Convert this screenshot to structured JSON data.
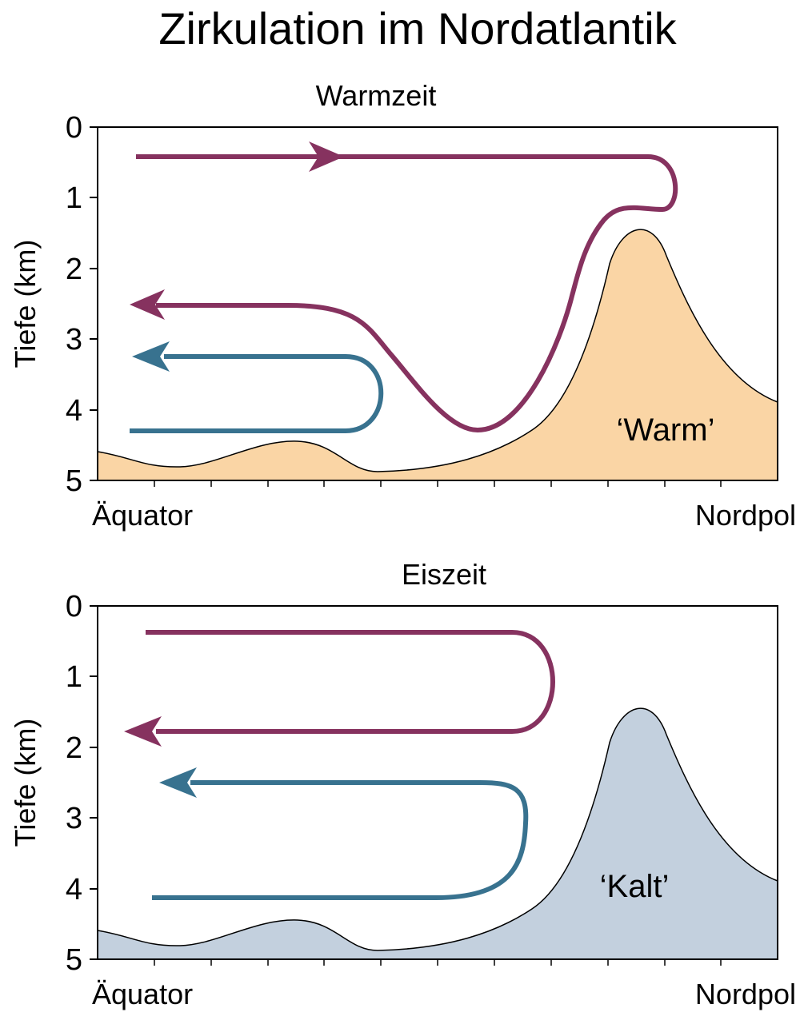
{
  "title": "Zirkulation im Nordatlantik",
  "panels": [
    {
      "subtitle": "Warmzeit",
      "ylabel": "Tiefe (km)",
      "yticks": [
        "0",
        "1",
        "2",
        "3",
        "4",
        "5"
      ],
      "x_left": "Äquator",
      "x_right": "Nordpol",
      "seafloor_label": "‘Warm’",
      "fill_color": "#fad5a5"
    },
    {
      "subtitle": "Eiszeit",
      "ylabel": "Tiefe (km)",
      "yticks": [
        "0",
        "1",
        "2",
        "3",
        "4",
        "5"
      ],
      "x_left": "Äquator",
      "x_right": "Nordpol",
      "seafloor_label": "‘Kalt’",
      "fill_color": "#c3d0de"
    }
  ],
  "colors": {
    "upper_cell": "#86325f",
    "deep_cell": "#38728f"
  }
}
